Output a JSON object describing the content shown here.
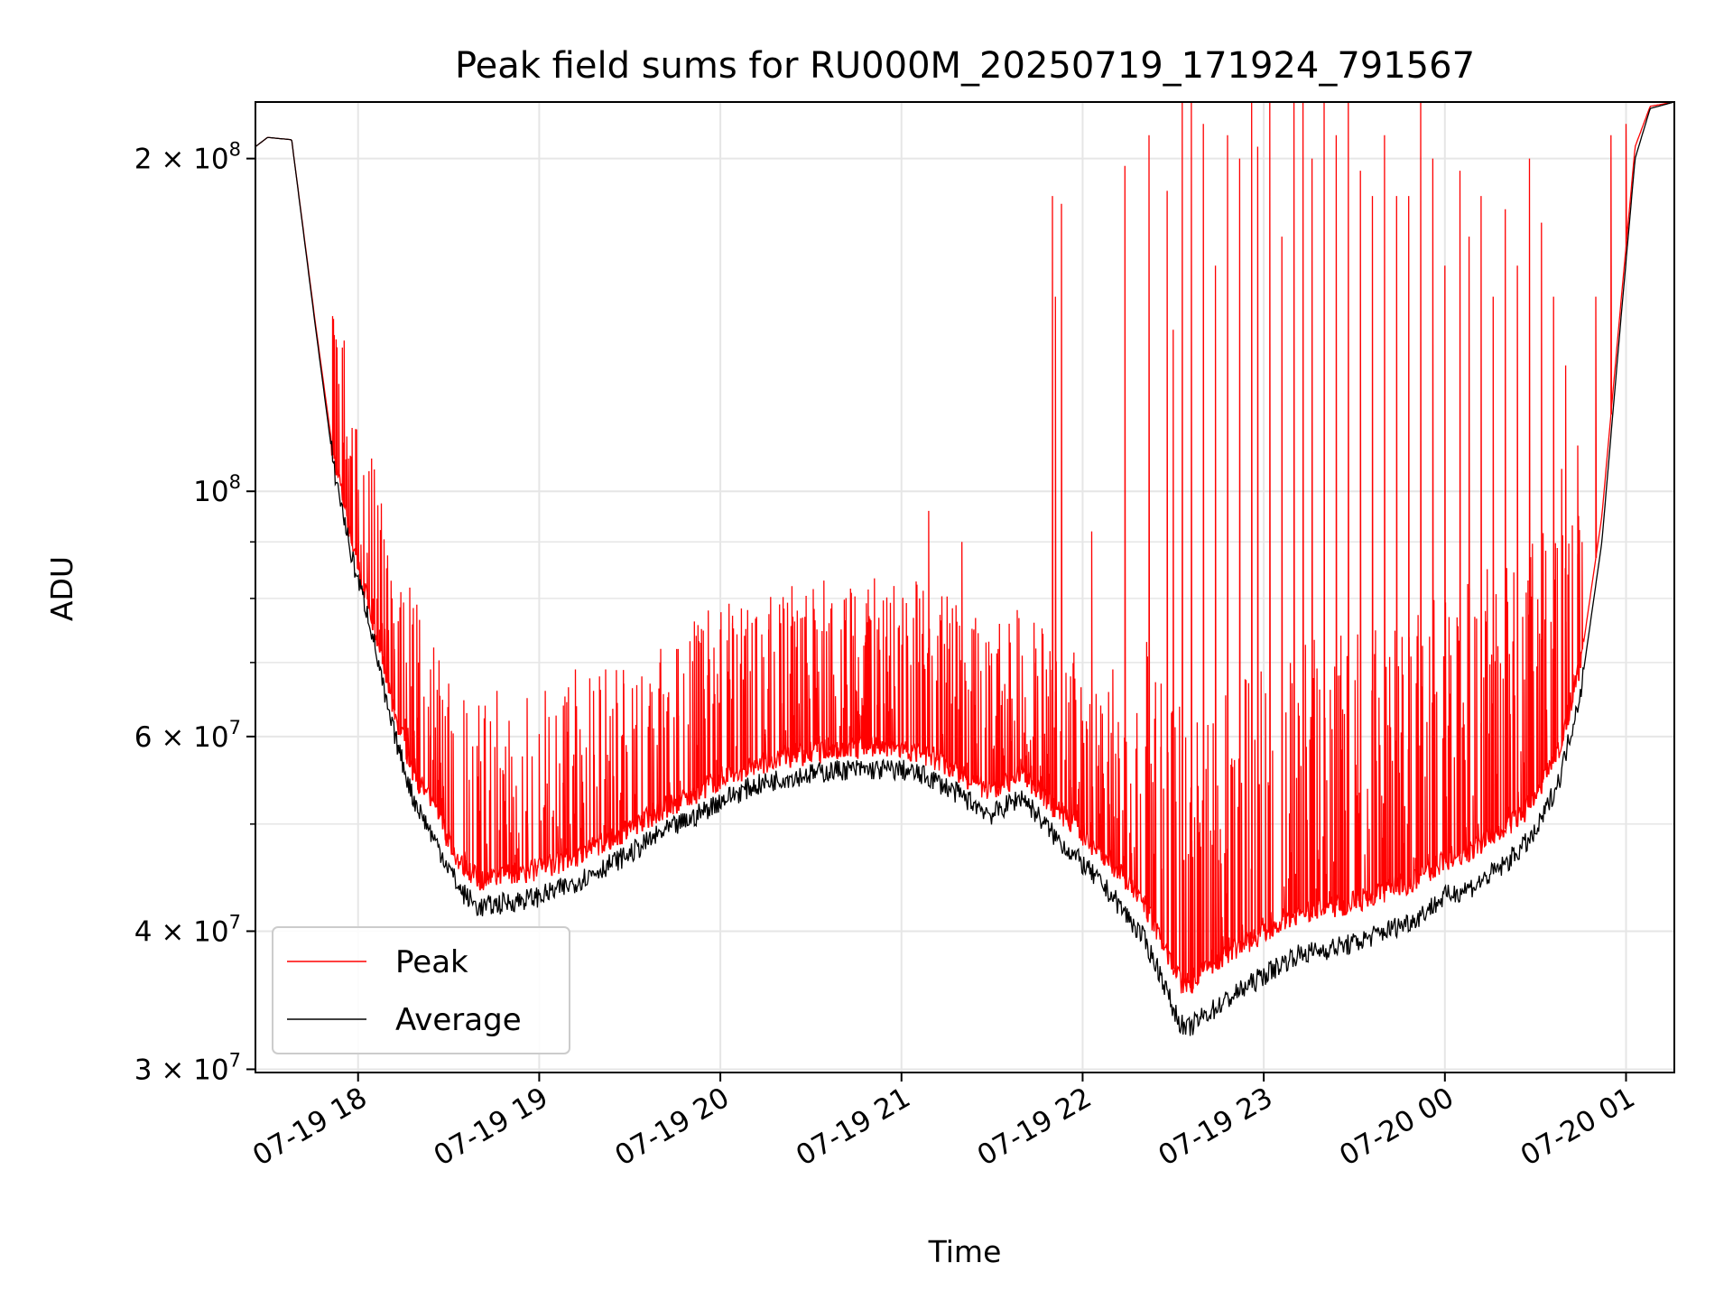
{
  "chart_data": {
    "type": "line",
    "title": "Peak field sums for RU000M_20250719_171924_791567",
    "xlabel": "Time",
    "ylabel": "ADU",
    "yscale": "log",
    "xlim": [
      "2025-07-19 17:26",
      "2025-07-20 01:16"
    ],
    "ylim": [
      29800000,
      225000000
    ],
    "grid": true,
    "legend_position": "lower-left",
    "x_ticks": [
      {
        "t": "2025-07-19 18:00",
        "label": "07-19 18"
      },
      {
        "t": "2025-07-19 19:00",
        "label": "07-19 19"
      },
      {
        "t": "2025-07-19 20:00",
        "label": "07-19 20"
      },
      {
        "t": "2025-07-19 21:00",
        "label": "07-19 21"
      },
      {
        "t": "2025-07-19 22:00",
        "label": "07-19 22"
      },
      {
        "t": "2025-07-19 23:00",
        "label": "07-19 23"
      },
      {
        "t": "2025-07-20 00:00",
        "label": "07-20 00"
      },
      {
        "t": "2025-07-20 01:00",
        "label": "07-20 01"
      }
    ],
    "y_ticks": [
      {
        "v": 30000000,
        "mantissa": "3",
        "exp": "7"
      },
      {
        "v": 40000000,
        "mantissa": "4",
        "exp": "7"
      },
      {
        "v": 60000000,
        "mantissa": "6",
        "exp": "7"
      },
      {
        "v": 100000000,
        "mantissa": "",
        "exp": "8"
      },
      {
        "v": 200000000,
        "mantissa": "2",
        "exp": "8"
      }
    ],
    "y_minor_ticks": [
      50000000,
      70000000,
      80000000,
      90000000
    ],
    "series": [
      {
        "name": "Average",
        "color": "#000000",
        "x": [
          "2025-07-19 17:26",
          "2025-07-19 17:30",
          "2025-07-19 17:38",
          "2025-07-19 17:46",
          "2025-07-19 17:52",
          "2025-07-19 17:58",
          "2025-07-19 18:04",
          "2025-07-19 18:10",
          "2025-07-19 18:18",
          "2025-07-19 18:26",
          "2025-07-19 18:34",
          "2025-07-19 18:40",
          "2025-07-19 18:50",
          "2025-07-19 19:00",
          "2025-07-19 19:10",
          "2025-07-19 19:20",
          "2025-07-19 19:30",
          "2025-07-19 19:40",
          "2025-07-19 19:50",
          "2025-07-19 20:00",
          "2025-07-19 20:10",
          "2025-07-19 20:20",
          "2025-07-19 20:30",
          "2025-07-19 20:40",
          "2025-07-19 20:50",
          "2025-07-19 21:00",
          "2025-07-19 21:10",
          "2025-07-19 21:20",
          "2025-07-19 21:30",
          "2025-07-19 21:40",
          "2025-07-19 21:50",
          "2025-07-19 22:00",
          "2025-07-19 22:10",
          "2025-07-19 22:20",
          "2025-07-19 22:26",
          "2025-07-19 22:30",
          "2025-07-19 22:34",
          "2025-07-19 22:40",
          "2025-07-19 22:50",
          "2025-07-19 23:00",
          "2025-07-19 23:10",
          "2025-07-19 23:20",
          "2025-07-19 23:30",
          "2025-07-19 23:40",
          "2025-07-19 23:50",
          "2025-07-20 00:00",
          "2025-07-20 00:10",
          "2025-07-20 00:20",
          "2025-07-20 00:30",
          "2025-07-20 00:38",
          "2025-07-20 00:45",
          "2025-07-20 00:52",
          "2025-07-20 00:58",
          "2025-07-20 01:03",
          "2025-07-20 01:08",
          "2025-07-20 01:16"
        ],
        "values": [
          205000000,
          209000000,
          208000000,
          140000000,
          105000000,
          87000000,
          76000000,
          63000000,
          53000000,
          48000000,
          43500000,
          42000000,
          42500000,
          43000000,
          44000000,
          45500000,
          47000000,
          49000000,
          50500000,
          52500000,
          54000000,
          55000000,
          55500000,
          56000000,
          56000000,
          56000000,
          55000000,
          53000000,
          51000000,
          53000000,
          49000000,
          46000000,
          43000000,
          39500000,
          36500000,
          34000000,
          32500000,
          33500000,
          35000000,
          36500000,
          38000000,
          38500000,
          39000000,
          40000000,
          41000000,
          43000000,
          44000000,
          46000000,
          49000000,
          55000000,
          66000000,
          90000000,
          140000000,
          200000000,
          222000000,
          225000000
        ]
      },
      {
        "name": "Peak",
        "color": "#ff0000",
        "x": [
          "2025-07-19 17:26",
          "2025-07-19 17:30",
          "2025-07-19 17:38",
          "2025-07-19 17:46",
          "2025-07-19 17:52",
          "2025-07-19 17:58",
          "2025-07-19 18:04",
          "2025-07-19 18:10",
          "2025-07-19 18:18",
          "2025-07-19 18:26",
          "2025-07-19 18:34",
          "2025-07-19 18:40",
          "2025-07-19 18:50",
          "2025-07-19 19:00",
          "2025-07-19 19:10",
          "2025-07-19 19:20",
          "2025-07-19 19:30",
          "2025-07-19 19:40",
          "2025-07-19 19:50",
          "2025-07-19 20:00",
          "2025-07-19 20:10",
          "2025-07-19 20:20",
          "2025-07-19 20:30",
          "2025-07-19 20:40",
          "2025-07-19 20:50",
          "2025-07-19 21:00",
          "2025-07-19 21:10",
          "2025-07-19 21:20",
          "2025-07-19 21:30",
          "2025-07-19 21:40",
          "2025-07-19 21:50",
          "2025-07-19 22:00",
          "2025-07-19 22:10",
          "2025-07-19 22:20",
          "2025-07-19 22:26",
          "2025-07-19 22:30",
          "2025-07-19 22:34",
          "2025-07-19 22:40",
          "2025-07-19 22:50",
          "2025-07-19 23:00",
          "2025-07-19 23:10",
          "2025-07-19 23:20",
          "2025-07-19 23:30",
          "2025-07-19 23:40",
          "2025-07-19 23:50",
          "2025-07-20 00:00",
          "2025-07-20 00:10",
          "2025-07-20 00:20",
          "2025-07-20 00:30",
          "2025-07-20 00:38",
          "2025-07-20 00:45",
          "2025-07-20 00:52",
          "2025-07-20 00:58",
          "2025-07-20 01:03",
          "2025-07-20 01:08",
          "2025-07-20 01:16"
        ],
        "values": [
          205000000,
          209000000,
          208000000,
          141000000,
          107000000,
          90000000,
          78000000,
          66000000,
          56000000,
          51000000,
          46000000,
          44500000,
          45000000,
          45500000,
          46500000,
          48000000,
          49500000,
          51500000,
          53000000,
          55000000,
          56500000,
          57500000,
          58000000,
          58500000,
          58500000,
          58500000,
          57500000,
          55500000,
          53500000,
          55500000,
          52000000,
          49000000,
          46000000,
          42500000,
          39500000,
          37000000,
          35500000,
          37000000,
          38500000,
          40000000,
          41500000,
          42000000,
          42500000,
          43500000,
          44500000,
          46500000,
          47500000,
          49500000,
          52500000,
          58500000,
          70000000,
          95000000,
          145000000,
          205000000,
          223000000,
          225000000
        ]
      }
    ],
    "peak_spikes": [
      [
        "2025-07-19 17:52",
        118000000
      ],
      [
        "2025-07-19 17:58",
        97000000
      ],
      [
        "2025-07-19 18:03",
        88000000
      ],
      [
        "2025-07-19 18:05",
        80000000
      ],
      [
        "2025-07-19 18:08",
        76000000
      ],
      [
        "2025-07-19 18:12",
        72000000
      ],
      [
        "2025-07-19 18:16",
        70000000
      ],
      [
        "2025-07-19 18:20",
        70000000
      ],
      [
        "2025-07-19 18:24",
        69000000
      ],
      [
        "2025-07-19 18:30",
        67000000
      ],
      [
        "2025-07-19 18:36",
        63000000
      ],
      [
        "2025-07-19 18:40",
        64000000
      ],
      [
        "2025-07-19 18:46",
        66000000
      ],
      [
        "2025-07-19 18:50",
        62000000
      ],
      [
        "2025-07-19 18:56",
        65000000
      ],
      [
        "2025-07-19 19:02",
        66000000
      ],
      [
        "2025-07-19 19:08",
        64000000
      ],
      [
        "2025-07-19 19:12",
        69000000
      ],
      [
        "2025-07-19 19:18",
        66000000
      ],
      [
        "2025-07-19 19:22",
        69000000
      ],
      [
        "2025-07-19 19:28",
        67000000
      ],
      [
        "2025-07-19 19:34",
        68000000
      ],
      [
        "2025-07-19 19:40",
        70000000
      ],
      [
        "2025-07-19 19:46",
        72000000
      ],
      [
        "2025-07-19 19:52",
        74000000
      ],
      [
        "2025-07-19 19:56",
        78000000
      ],
      [
        "2025-07-19 20:00",
        75000000
      ],
      [
        "2025-07-19 20:04",
        76000000
      ],
      [
        "2025-07-19 20:08",
        74000000
      ],
      [
        "2025-07-19 20:12",
        77000000
      ],
      [
        "2025-07-19 20:16",
        75000000
      ],
      [
        "2025-07-19 20:20",
        76000000
      ],
      [
        "2025-07-19 20:24",
        77000000
      ],
      [
        "2025-07-19 20:28",
        77000000
      ],
      [
        "2025-07-19 20:32",
        75000000
      ],
      [
        "2025-07-19 20:36",
        76000000
      ],
      [
        "2025-07-19 20:40",
        75000000
      ],
      [
        "2025-07-19 20:44",
        74000000
      ],
      [
        "2025-07-19 20:48",
        73000000
      ],
      [
        "2025-07-19 20:52",
        75000000
      ],
      [
        "2025-07-19 20:56",
        71000000
      ],
      [
        "2025-07-19 21:02",
        74000000
      ],
      [
        "2025-07-19 21:06",
        80000000
      ],
      [
        "2025-07-19 21:09",
        96000000
      ],
      [
        "2025-07-19 21:12",
        74000000
      ],
      [
        "2025-07-19 21:16",
        76000000
      ],
      [
        "2025-07-19 21:20",
        90000000
      ],
      [
        "2025-07-19 21:24",
        75000000
      ],
      [
        "2025-07-19 21:28",
        73000000
      ],
      [
        "2025-07-19 21:32",
        72000000
      ],
      [
        "2025-07-19 21:36",
        73000000
      ],
      [
        "2025-07-19 21:40",
        71000000
      ],
      [
        "2025-07-19 21:44",
        70000000
      ],
      [
        "2025-07-19 21:48",
        69000000
      ],
      [
        "2025-07-19 21:50",
        185000000
      ],
      [
        "2025-07-19 21:51",
        150000000
      ],
      [
        "2025-07-19 21:53",
        182000000
      ],
      [
        "2025-07-19 21:56",
        68000000
      ],
      [
        "2025-07-19 22:00",
        62000000
      ],
      [
        "2025-07-19 22:03",
        92000000
      ],
      [
        "2025-07-19 22:06",
        64000000
      ],
      [
        "2025-07-19 22:10",
        69000000
      ],
      [
        "2025-07-19 22:14",
        197000000
      ],
      [
        "2025-07-19 22:18",
        63000000
      ],
      [
        "2025-07-19 22:22",
        210000000
      ],
      [
        "2025-07-19 22:26",
        67000000
      ],
      [
        "2025-07-19 22:28",
        187000000
      ],
      [
        "2025-07-19 22:30",
        140000000
      ],
      [
        "2025-07-19 22:33",
        225000000
      ],
      [
        "2025-07-19 22:36",
        225000000
      ],
      [
        "2025-07-19 22:40",
        215000000
      ],
      [
        "2025-07-19 22:44",
        160000000
      ],
      [
        "2025-07-19 22:48",
        210000000
      ],
      [
        "2025-07-19 22:52",
        200000000
      ],
      [
        "2025-07-19 22:56",
        225000000
      ],
      [
        "2025-07-19 22:58",
        205000000
      ],
      [
        "2025-07-19 23:02",
        225000000
      ],
      [
        "2025-07-19 23:06",
        170000000
      ],
      [
        "2025-07-19 23:10",
        225000000
      ],
      [
        "2025-07-19 23:13",
        225000000
      ],
      [
        "2025-07-19 23:16",
        200000000
      ],
      [
        "2025-07-19 23:20",
        225000000
      ],
      [
        "2025-07-19 23:24",
        210000000
      ],
      [
        "2025-07-19 23:28",
        225000000
      ],
      [
        "2025-07-19 23:32",
        195000000
      ],
      [
        "2025-07-19 23:36",
        185000000
      ],
      [
        "2025-07-19 23:40",
        210000000
      ],
      [
        "2025-07-19 23:44",
        185000000
      ],
      [
        "2025-07-19 23:48",
        185000000
      ],
      [
        "2025-07-19 23:52",
        225000000
      ],
      [
        "2025-07-19 23:56",
        200000000
      ],
      [
        "2025-07-20 00:00",
        160000000
      ],
      [
        "2025-07-20 00:05",
        195000000
      ],
      [
        "2025-07-20 00:08",
        170000000
      ],
      [
        "2025-07-20 00:12",
        185000000
      ],
      [
        "2025-07-20 00:16",
        150000000
      ],
      [
        "2025-07-20 00:20",
        180000000
      ],
      [
        "2025-07-20 00:24",
        160000000
      ],
      [
        "2025-07-20 00:28",
        200000000
      ],
      [
        "2025-07-20 00:32",
        175000000
      ],
      [
        "2025-07-20 00:36",
        150000000
      ],
      [
        "2025-07-20 00:40",
        130000000
      ],
      [
        "2025-07-20 00:44",
        110000000
      ],
      [
        "2025-07-20 00:50",
        150000000
      ],
      [
        "2025-07-20 00:55",
        210000000
      ],
      [
        "2025-07-20 01:00",
        215000000
      ]
    ]
  }
}
